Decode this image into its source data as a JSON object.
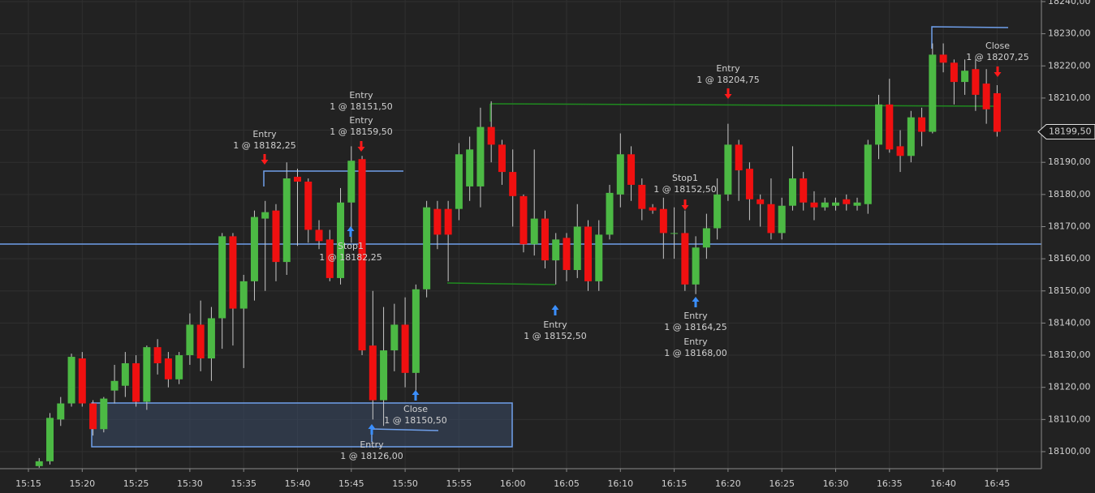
{
  "chart_data": {
    "type": "candlestick",
    "categories": [
      "15:15",
      null,
      null,
      null,
      null,
      "15:20",
      null,
      null,
      null,
      null,
      "15:25",
      null,
      null,
      null,
      null,
      "15:30",
      null,
      null,
      null,
      null,
      "15:35",
      null,
      null,
      null,
      null,
      "15:40",
      null,
      null,
      null,
      null,
      "15:45",
      null,
      null,
      null,
      null,
      "15:50",
      null,
      null,
      null,
      null,
      "15:55",
      null,
      null,
      null,
      null,
      "16:00",
      null,
      null,
      null,
      null,
      "16:05",
      null,
      null,
      null,
      null,
      "16:10",
      null,
      null,
      null,
      null,
      "16:15",
      null,
      null,
      null,
      null,
      "16:20",
      null,
      null,
      null,
      null,
      "16:25",
      null,
      null,
      null,
      null,
      "16:30",
      null,
      null,
      null,
      null,
      "16:35",
      null,
      null,
      null,
      null,
      "16:40",
      null,
      null,
      null,
      null,
      "16:45"
    ],
    "open": [
      null,
      18095.5,
      18097,
      18110,
      18115,
      18129,
      18115,
      18107,
      18119,
      18120.5,
      18127.5,
      18115.5,
      18132.5,
      18129,
      18122.5,
      18130,
      18139.5,
      18129,
      18141.5,
      18167,
      18144.5,
      18153,
      18172.5,
      18175,
      18159,
      18185.5,
      18184,
      18169,
      18166,
      18154,
      18177.5,
      18191,
      18133,
      18116,
      18131.5,
      18139.5,
      18124.5,
      18150.5,
      18175.5,
      18175.5,
      18175.5,
      18182.5,
      18182.5,
      18201,
      18195.5,
      18187,
      18179.5,
      18164.5,
      18172.5,
      18159.5,
      18166.5,
      18156.5,
      18170,
      18153,
      18167.5,
      18180,
      18192.5,
      18183,
      18176,
      18175.5,
      18168,
      18168,
      18152,
      18163.5,
      18169.5,
      18180,
      18195.5,
      18188,
      18178.5,
      18177,
      18168,
      18176.5,
      18185,
      18177.5,
      18176,
      18176.5,
      18178.5,
      18176.5,
      18177,
      18195.5,
      18208,
      18195,
      18192,
      18204,
      18199.5,
      18223.5,
      18221,
      18215,
      18219,
      18214.5,
      18211.5
    ],
    "high": [
      null,
      18098,
      18112,
      18117,
      18130.5,
      18131,
      18116,
      18117,
      18127,
      18131,
      18130,
      18133,
      18135,
      18131,
      18131,
      18143,
      18147,
      18145,
      18168,
      18168,
      18155,
      18175,
      18178,
      18177,
      18190,
      18188,
      18185,
      18172,
      18169,
      18182,
      18195,
      18192,
      18150,
      18145,
      18146,
      18148,
      18152,
      18178,
      18178,
      18178,
      18196,
      18198,
      18207,
      18209,
      18197,
      18194,
      18180,
      18194,
      18175,
      18168,
      18168,
      18177,
      18172,
      18172,
      18183,
      18199,
      18195,
      18185,
      18177,
      18179,
      18176,
      18175,
      18167,
      18174,
      18185,
      18202,
      18197,
      18190,
      18180,
      18185,
      18179,
      18195,
      18187,
      18181,
      18179,
      18179,
      18180,
      18179,
      18197,
      18211,
      18216,
      18200,
      18206,
      18207,
      18227,
      18227,
      18222,
      18222,
      18222,
      18219,
      18214
    ],
    "low": [
      null,
      18095,
      18096,
      18108,
      18114,
      18114,
      18105,
      18106,
      18115,
      18117,
      18114,
      18113,
      18124,
      18120,
      18121,
      18127,
      18125,
      18122,
      18132,
      18133,
      18126,
      18147,
      18150,
      18153,
      18155,
      18164,
      18165,
      18163,
      18153,
      18152,
      18165,
      18130,
      18110,
      18108,
      18125,
      18120,
      18119,
      18148,
      18163,
      18153,
      18172,
      18178,
      18176,
      18190,
      18183,
      18170,
      18162,
      18161,
      18157,
      18152,
      18153,
      18154,
      18150,
      18150,
      18166,
      18176,
      18178,
      18172,
      18174,
      18160,
      18160,
      18150,
      18149,
      18160,
      18166,
      18178,
      18178,
      18172,
      18170,
      18166,
      18166,
      18175,
      18175,
      18172,
      18175,
      18175,
      18175,
      18175,
      18174,
      18191,
      18193,
      18187,
      18190,
      18195,
      18199,
      18218,
      18208,
      18211,
      18206,
      18202,
      18198
    ],
    "close": [
      null,
      18097,
      18110.5,
      18115,
      18129.5,
      18115,
      18107,
      18116.5,
      18122,
      18127.5,
      18115.5,
      18132.5,
      18127.5,
      18122.5,
      18130,
      18139.5,
      18129,
      18141.5,
      18167,
      18144.5,
      18153,
      18173,
      18174.5,
      18159,
      18185,
      18184,
      18169,
      18165.5,
      18154,
      18177.5,
      18190.5,
      18131.5,
      18116,
      18131.5,
      18139.5,
      18124.5,
      18150.5,
      18176,
      18167.5,
      18167.5,
      18192.5,
      18194,
      18201,
      18195.5,
      18187,
      18179.5,
      18164.5,
      18172.5,
      18159.5,
      18166,
      18156.5,
      18170,
      18153,
      18167.5,
      18180.5,
      18192.5,
      18183,
      18175.5,
      18175,
      18168,
      18168,
      18152,
      18163.5,
      18169.5,
      18180,
      18195.5,
      18187.5,
      18178.5,
      18177,
      18168,
      18176.5,
      18185,
      18177.5,
      18176,
      18177.5,
      18177.5,
      18177,
      18177.5,
      18195.5,
      18208,
      18194,
      18192,
      18204,
      18199.5,
      18223.5,
      18221,
      18215,
      18218.5,
      18211,
      18206.5,
      18199.5
    ],
    "up_color": "#4cb944",
    "down_color": "#f01010",
    "wick_color": "#c8c8c8",
    "ylim": [
      18094.7,
      18240.5
    ],
    "yticks": [
      {
        "value": 18100,
        "label": "18100,00"
      },
      {
        "value": 18110,
        "label": "18110,00"
      },
      {
        "value": 18120,
        "label": "18120,00"
      },
      {
        "value": 18130,
        "label": "18130,00"
      },
      {
        "value": 18140,
        "label": "18140,00"
      },
      {
        "value": 18150,
        "label": "18150,00"
      },
      {
        "value": 18160,
        "label": "18160,00"
      },
      {
        "value": 18170,
        "label": "18170,00"
      },
      {
        "value": 18180,
        "label": "18180,00"
      },
      {
        "value": 18190,
        "label": "18190,00"
      },
      {
        "value": 18200,
        "label": "18200,00"
      },
      {
        "value": 18210,
        "label": "18210,00"
      },
      {
        "value": 18220,
        "label": "18220,00"
      },
      {
        "value": 18230,
        "label": "18230,00"
      },
      {
        "value": 18240,
        "label": "18240,00"
      }
    ],
    "grid": true,
    "last_price": {
      "value": 18199.5,
      "label": "18199,50"
    },
    "annotations": [
      {
        "label": "Entry",
        "detail": "1 @ 18182,25"
      },
      {
        "label": "Entry",
        "detail": "1 @ 18151,50"
      },
      {
        "label": "Entry",
        "detail": "1 @ 18159,50"
      },
      {
        "label": "Stop1",
        "detail": "1 @ 18182,25"
      },
      {
        "label": "Close",
        "detail": "1 @ 18150,50"
      },
      {
        "label": "Entry",
        "detail": "1 @ 18126,00"
      },
      {
        "label": "Entry",
        "detail": "1 @ 18152,50"
      },
      {
        "label": "Stop1",
        "detail": "1 @ 18152,50"
      },
      {
        "label": "Entry",
        "detail": "1 @ 18164,25"
      },
      {
        "label": "Entry",
        "detail": "1 @ 18168,00"
      },
      {
        "label": "Entry",
        "detail": "1 @ 18204,75"
      },
      {
        "label": "Close",
        "detail": "1 @ 18207,25"
      }
    ]
  }
}
